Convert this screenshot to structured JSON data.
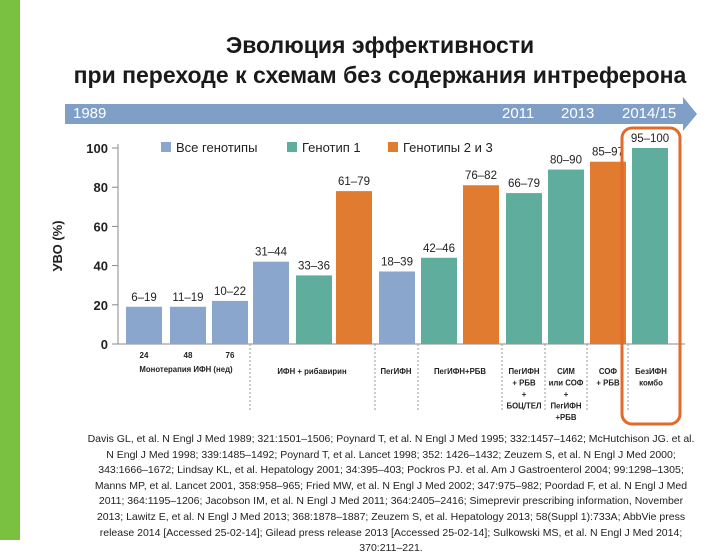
{
  "title_line1": "Эволюция эффективности",
  "title_line2": "при переходе к схемам без содержания интреферона",
  "timeline": [
    "1989",
    "2011",
    "2013",
    "2014/15"
  ],
  "colors": {
    "all": "#8ba6cc",
    "g1": "#5fad9c",
    "g23": "#e07b30",
    "accent": "#e26a2c",
    "stripe": "#7ac142",
    "timeline": "#7f9fc6"
  },
  "chart_data": {
    "type": "bar",
    "ylabel": "УВО (%)",
    "ylim": [
      0,
      100
    ],
    "yticks": [
      0,
      20,
      40,
      60,
      80,
      100
    ],
    "legend": [
      {
        "key": "all",
        "label": "Все генотипы"
      },
      {
        "key": "g1",
        "label": "Генотип 1"
      },
      {
        "key": "g23",
        "label": "Генотипы 2 и 3"
      }
    ],
    "bars": [
      {
        "series": "all",
        "value": 19,
        "label": "6–19"
      },
      {
        "series": "all",
        "value": 19,
        "label": "11–19"
      },
      {
        "series": "all",
        "value": 22,
        "label": "10–22"
      },
      {
        "series": "all",
        "value": 42,
        "label": "31–44"
      },
      {
        "series": "g1",
        "value": 35,
        "label": "33–36"
      },
      {
        "series": "g23",
        "value": 78,
        "label": "61–79"
      },
      {
        "series": "all",
        "value": 37,
        "label": "18–39"
      },
      {
        "series": "g1",
        "value": 44,
        "label": "42–46"
      },
      {
        "series": "g23",
        "value": 81,
        "label": "76–82"
      },
      {
        "series": "g1",
        "value": 77,
        "label": "66–79"
      },
      {
        "series": "g1",
        "value": 89,
        "label": "80–90"
      },
      {
        "series": "g23",
        "value": 93,
        "label": "85–97"
      },
      {
        "series": "g1",
        "value": 100,
        "label": "95–100"
      }
    ],
    "week_labels": [
      "24",
      "48",
      "76"
    ],
    "groups": [
      {
        "label": [
          "Монотерапия ИФН (нед)"
        ]
      },
      {
        "label": [
          "ИФН + рибавирин"
        ]
      },
      {
        "label": [
          "ПегИФН"
        ]
      },
      {
        "label": [
          "ПегИФН+РБВ"
        ]
      },
      {
        "label": [
          "ПегИФН",
          "+ РБВ",
          "+",
          "БОЦ/ТЕЛ"
        ]
      },
      {
        "label": [
          "СИМ",
          "или СОФ",
          "+",
          "ПегИФН",
          "+РБВ"
        ]
      },
      {
        "label": [
          "СОФ",
          "+ РБВ"
        ]
      },
      {
        "label": [
          "БезИФН",
          "комбо"
        ]
      }
    ]
  },
  "references": "Davis GL, et al. N Engl J Med 1989; 321:1501–1506; Poynard T, et al. N Engl J Med 1995; 332:1457–1462; McHutchison JG. et al. N Engl J Med 1998; 339:1485–1492; Poynard T, et al. Lancet 1998; 352: 1426–1432; Zeuzem S, et al. N Engl J Med 2000; 343:1666–1672; Lindsay KL, et al. Hepatology 2001; 34:395–403; Pockros PJ. et al. Am J Gastroenterol 2004; 99:1298–1305; Manns MP, et al. Lancet 2001, 358:958–965; Fried MW, et al. N Engl J Med 2002; 347:975–982; Poordad F, et al. N Engl J Med 2011; 364:1195–1206; Jacobson IM, et al. N Engl J Med 2011; 364:2405–2416; Simeprevir prescribing information, November 2013; Lawitz E, et al. N Engl J Med 2013; 368:1878–1887; Zeuzem S, et al. Hepatology 2013; 58(Suppl 1):733A; AbbVie press release 2014 [Accessed 25-02-14]; Gilead press release 2013 [Accessed 25-02-14]; Sulkowski MS, et al. N Engl J Med 2014; 370:211–221."
}
